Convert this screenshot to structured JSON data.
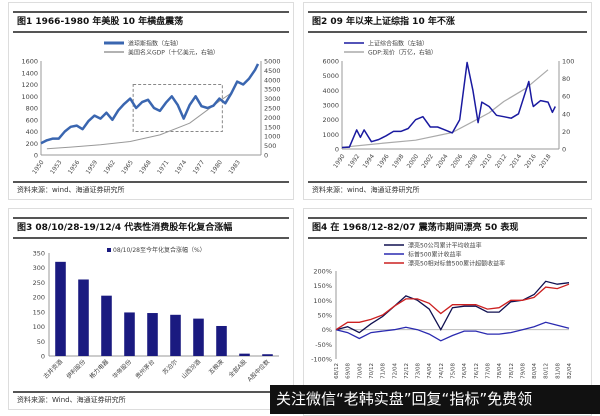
{
  "source_label": "资料来源：wind、海通证券研究所",
  "source_label3": "资料来源：Wind、海通证券研究所",
  "watermark": "关注微信“老韩实盘”回复“指标”免费领",
  "chart_data": [
    {
      "type": "line",
      "title": "图1  1966-1980 年美股 10 年横盘震荡",
      "legend": [
        "道琼斯指数（左轴）",
        "美国名义GDP（十亿美元，右轴）"
      ],
      "colors": [
        "#3a66b0",
        "#999999"
      ],
      "xticks": [
        "1950",
        "1953",
        "1956",
        "1959",
        "1962",
        "1965",
        "1968",
        "1971",
        "1974",
        "1977",
        "1980",
        "1983"
      ],
      "ylim": [
        0,
        1600
      ],
      "yticks": [
        "0",
        "200",
        "400",
        "600",
        "800",
        "1000",
        "1200",
        "1400",
        "1600"
      ],
      "y2lim": [
        0,
        5000
      ],
      "y2ticks": [
        "0",
        "500",
        "1000",
        "1500",
        "2000",
        "2500",
        "3000",
        "3500",
        "4000",
        "4500",
        "5000"
      ],
      "highlight_box": {
        "x": [
          1965.5,
          1980.5
        ],
        "y": [
          400,
          1200
        ]
      },
      "series": [
        {
          "name": "道琼斯指数（左轴）",
          "axis": "left",
          "x": [
            1950,
            1951,
            1952,
            1953,
            1954,
            1955,
            1956,
            1957,
            1958,
            1959,
            1960,
            1961,
            1962,
            1963,
            1964,
            1965,
            1966,
            1967,
            1968,
            1969,
            1970,
            1971,
            1972,
            1973,
            1974,
            1975,
            1976,
            1977,
            1978,
            1979,
            1980,
            1981,
            1982,
            1983,
            1984,
            1985,
            1986,
            1986.5
          ],
          "y": [
            200,
            250,
            280,
            280,
            400,
            480,
            500,
            440,
            580,
            670,
            620,
            720,
            600,
            760,
            870,
            960,
            800,
            900,
            940,
            800,
            750,
            890,
            1000,
            850,
            620,
            850,
            1000,
            830,
            800,
            840,
            960,
            880,
            1050,
            1250,
            1200,
            1300,
            1450,
            1550
          ]
        },
        {
          "name": "美国名义GDP（十亿美元，右轴）",
          "axis": "right",
          "x": [
            1951,
            1955,
            1960,
            1965,
            1970,
            1975,
            1980,
            1982
          ],
          "y": [
            330,
            420,
            540,
            720,
            1070,
            1690,
            2860,
            3300
          ]
        }
      ]
    },
    {
      "type": "line",
      "title": "图2  09 年以来上证综指 10 年不涨",
      "legend": [
        "上证综合指数（左轴）",
        "GDP:现价（万亿，右轴）"
      ],
      "colors": [
        "#1a1aa0",
        "#aaaaaa"
      ],
      "xticks": [
        "1990",
        "1992",
        "1994",
        "1996",
        "1998",
        "2000",
        "2002",
        "2004",
        "2006",
        "2008",
        "2010",
        "2012",
        "2014",
        "2016",
        "2018"
      ],
      "ylim": [
        0,
        6000
      ],
      "yticks": [
        "0",
        "1000",
        "2000",
        "3000",
        "4000",
        "5000",
        "6000"
      ],
      "y2lim": [
        0,
        100
      ],
      "y2ticks": [
        "0",
        "20",
        "40",
        "60",
        "80",
        "100"
      ],
      "series": [
        {
          "name": "上证综合指数（左轴）",
          "axis": "left",
          "x": [
            1990,
            1991,
            1992,
            1992.5,
            1993,
            1994,
            1995,
            1996,
            1997,
            1998,
            1999,
            2000,
            2001,
            2002,
            2003,
            2004,
            2005,
            2006,
            2007,
            2007.8,
            2008.5,
            2009,
            2010,
            2011,
            2012,
            2013,
            2014,
            2015.4,
            2015.8,
            2016,
            2017,
            2018,
            2018.6,
            2019
          ],
          "y": [
            100,
            130,
            1300,
            800,
            1300,
            500,
            650,
            900,
            1200,
            1200,
            1400,
            2000,
            2200,
            1500,
            1500,
            1300,
            1100,
            2000,
            5900,
            4000,
            1800,
            3200,
            2900,
            2300,
            2200,
            2100,
            2400,
            4600,
            3300,
            2900,
            3300,
            3200,
            2500,
            2900
          ]
        },
        {
          "name": "GDP:现价（万亿，右轴）",
          "axis": "right",
          "x": [
            1990,
            1995,
            2000,
            2005,
            2008,
            2010,
            2012,
            2015,
            2018
          ],
          "y": [
            1.9,
            6.1,
            10,
            18.7,
            32,
            41,
            54,
            69,
            90
          ]
        }
      ]
    },
    {
      "type": "bar",
      "title": "图3  08/10/28-19/12/4 代表性消费股年化复合涨幅",
      "legend": [
        "08/10/28至今年化复合涨幅（%）"
      ],
      "color": "#1a1a80",
      "categories": [
        "古井贡酒",
        "伊利股份",
        "格力电器",
        "华帝股份",
        "贵州茅台",
        "苏泊尔",
        "山西汾酒",
        "五粮液",
        "全部A股",
        "A股中位数"
      ],
      "values": [
        320,
        260,
        205,
        148,
        146,
        140,
        127,
        102,
        8,
        6
      ],
      "ylim": [
        0,
        350
      ],
      "yticks": [
        "0",
        "50",
        "100",
        "150",
        "200",
        "250",
        "300",
        "350"
      ]
    },
    {
      "type": "line",
      "title": "图4  在 1968/12-82/07 震荡市期间漂亮 50 表现",
      "legend": [
        "漂亮50公司累计平均收益率",
        "标普500累计收益率",
        "漂亮50相对标普500累计超额收益率"
      ],
      "colors": [
        "#101050",
        "#2a2ab0",
        "#cc2020"
      ],
      "categories": [
        "68/12",
        "69/08",
        "70/04",
        "70/12",
        "71/08",
        "72/04",
        "72/12",
        "73/08",
        "74/04",
        "74/12",
        "75/08",
        "76/04",
        "76/12",
        "77/08",
        "78/04",
        "78/12",
        "79/08",
        "80/04",
        "80/12",
        "81/08",
        "82/04"
      ],
      "ylim": [
        -100,
        200
      ],
      "yticks": [
        "-100%",
        "-50%",
        "0%",
        "50%",
        "100%",
        "150%",
        "200%"
      ],
      "series": [
        {
          "name": "漂亮50公司累计平均收益率",
          "values": [
            0,
            10,
            -10,
            20,
            45,
            80,
            115,
            100,
            70,
            0,
            75,
            80,
            80,
            60,
            60,
            95,
            100,
            120,
            165,
            155,
            160
          ]
        },
        {
          "name": "标普500累计收益率",
          "values": [
            0,
            -10,
            -30,
            -10,
            -5,
            0,
            8,
            0,
            -15,
            -38,
            -20,
            -5,
            -5,
            -15,
            -15,
            -10,
            0,
            10,
            25,
            15,
            5
          ]
        },
        {
          "name": "漂亮50相对标普500累计超额收益率",
          "values": [
            0,
            25,
            25,
            35,
            50,
            80,
            105,
            105,
            90,
            55,
            85,
            85,
            85,
            70,
            75,
            100,
            100,
            110,
            145,
            140,
            155
          ]
        }
      ]
    }
  ]
}
